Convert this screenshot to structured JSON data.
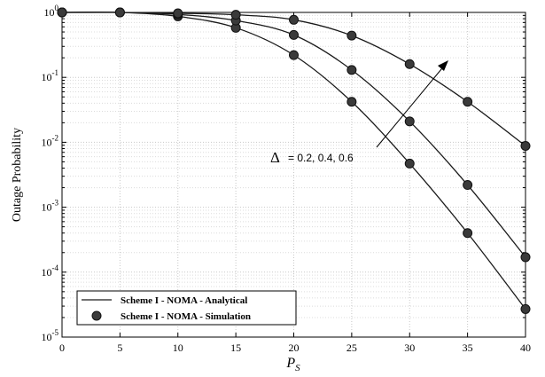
{
  "chart_data": {
    "type": "line",
    "title": "",
    "xlabel": "P",
    "xlabel_sub": "S",
    "ylabel": "Outage Probability",
    "xlim": [
      0,
      40
    ],
    "ylim": [
      1e-05,
      1
    ],
    "yscale": "log",
    "grid": true,
    "x_ticks": [
      "0",
      "5",
      "10",
      "15",
      "20",
      "25",
      "30",
      "35",
      "40"
    ],
    "y_ticks": [
      {
        "base": "10",
        "exp": "0"
      },
      {
        "base": "10",
        "exp": "-1"
      },
      {
        "base": "10",
        "exp": "-2"
      },
      {
        "base": "10",
        "exp": "-3"
      },
      {
        "base": "10",
        "exp": "-4"
      },
      {
        "base": "10",
        "exp": "-5"
      }
    ],
    "legend_position": "bottom-left",
    "legend": [
      {
        "label": "Scheme I - NOMA - Analytical",
        "marker": "line"
      },
      {
        "label": "Scheme I - NOMA - Simulation",
        "marker": "circle"
      }
    ],
    "annotation": {
      "symbol": "Δ",
      "text": "= 0.2, 0.4, 0.6"
    },
    "x": [
      0,
      5,
      10,
      15,
      20,
      25,
      30,
      35,
      40
    ],
    "series": [
      {
        "values": [
          1,
          1,
          0.87,
          0.58,
          0.22,
          0.042,
          0.0047,
          0.0004,
          2.7e-05
        ]
      },
      {
        "values": [
          1,
          1,
          0.93,
          0.75,
          0.45,
          0.13,
          0.021,
          0.0022,
          0.00017
        ]
      },
      {
        "values": [
          1,
          1,
          0.97,
          0.92,
          0.77,
          0.44,
          0.16,
          0.042,
          0.0088
        ]
      }
    ],
    "colors": {
      "line": "#1a1a1a",
      "marker": "#3a3a3a",
      "grid": "#c8c8c8"
    }
  }
}
